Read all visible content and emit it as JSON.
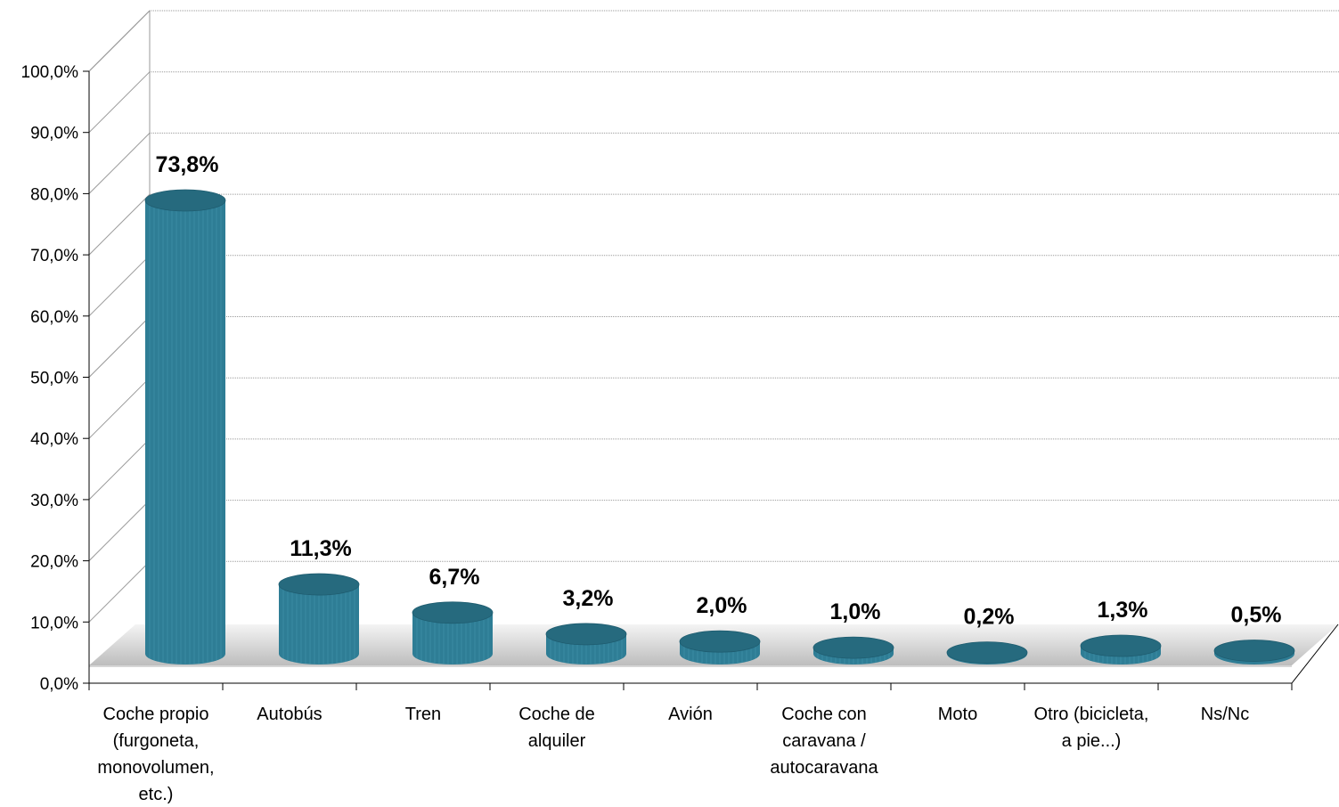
{
  "chart_data": {
    "type": "bar",
    "style": "3d-cylinder",
    "title": "",
    "xlabel": "",
    "ylabel": "",
    "ylim": [
      0,
      100
    ],
    "y_ticks": [
      "0,0%",
      "10,0%",
      "20,0%",
      "30,0%",
      "40,0%",
      "50,0%",
      "60,0%",
      "70,0%",
      "80,0%",
      "90,0%",
      "100,0%"
    ],
    "grid": true,
    "legend": "none",
    "categories": [
      [
        "Coche propio",
        "(furgoneta,",
        "monovolumen,",
        "etc.)"
      ],
      [
        "Autobús"
      ],
      [
        "Tren"
      ],
      [
        "Coche de",
        "alquiler"
      ],
      [
        "Avión"
      ],
      [
        "Coche con",
        "caravana /",
        "autocaravana"
      ],
      [
        "Moto"
      ],
      [
        "Otro (bicicleta,",
        "a pie...)"
      ],
      [
        "Ns/Nc"
      ]
    ],
    "values": [
      73.8,
      11.3,
      6.7,
      3.2,
      2.0,
      1.0,
      0.2,
      1.3,
      0.5
    ],
    "data_labels": [
      "73,8%",
      "11,3%",
      "6,7%",
      "3,2%",
      "2,0%",
      "1,0%",
      "0,2%",
      "1,3%",
      "0,5%"
    ],
    "colors": {
      "bar_body": "#2e7d95",
      "bar_stripe": "#4b9bb3",
      "bar_top": "#266a7e",
      "floor_light": "#f2f2f2",
      "floor_dark": "#bdbdbd",
      "gridline": "#9a9a9a",
      "axis": "#000000"
    }
  }
}
